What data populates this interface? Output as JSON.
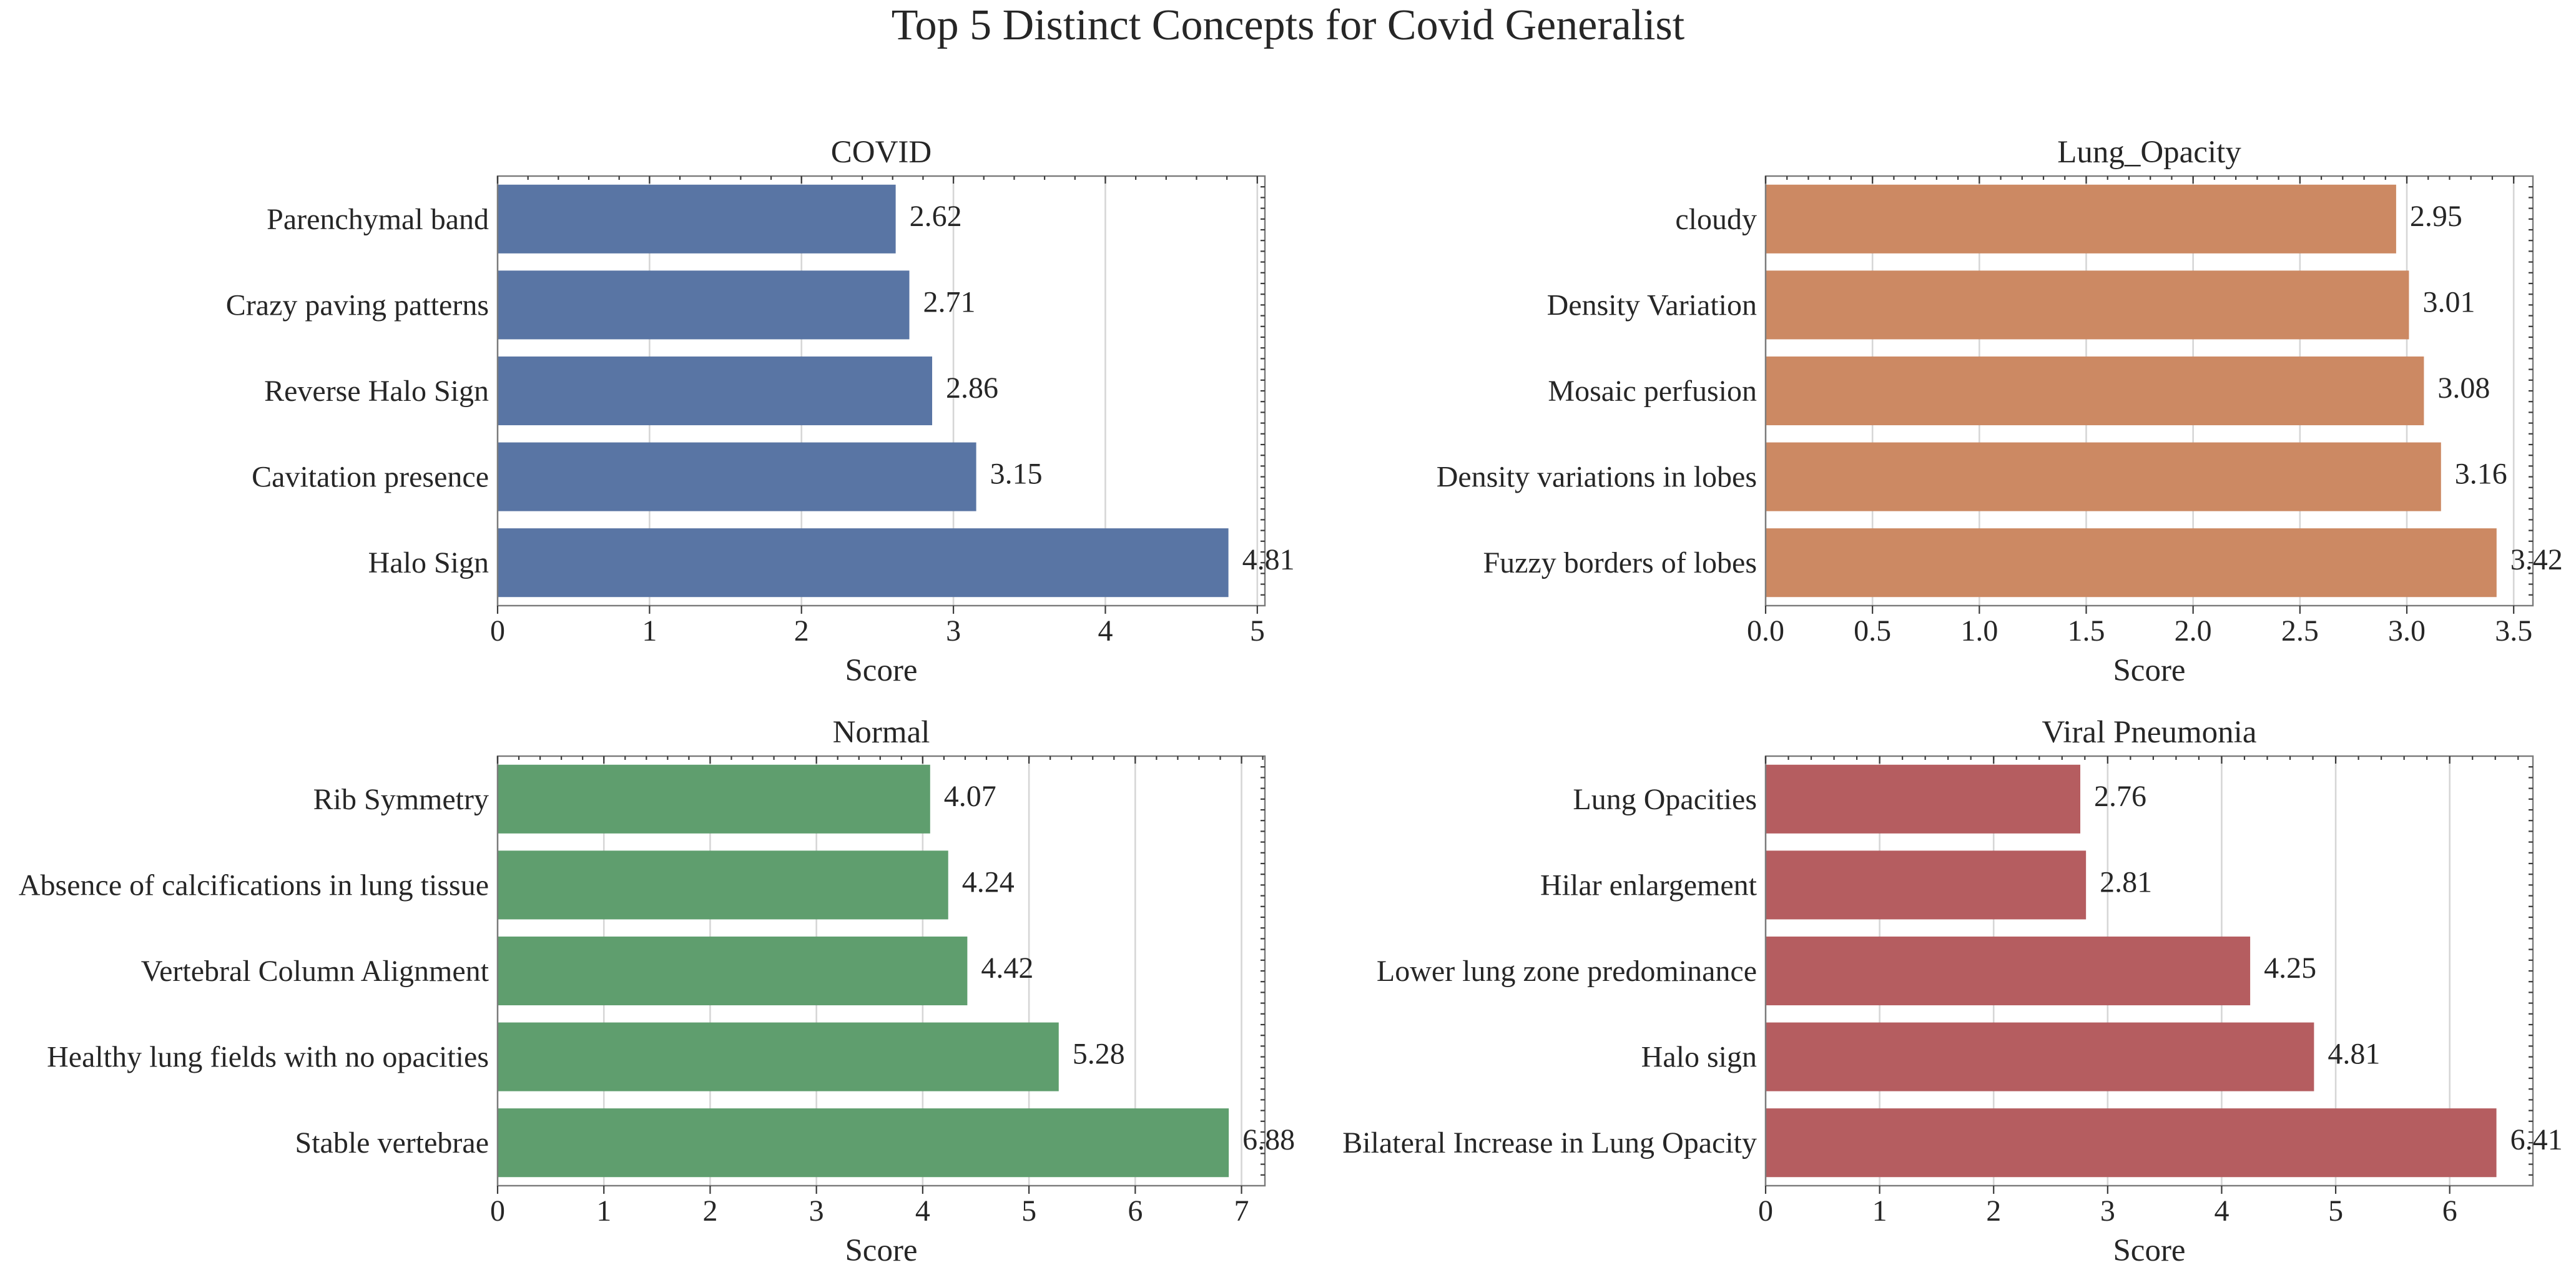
{
  "figure": {
    "title": "Top 5 Distinct Concepts for Covid Generalist"
  },
  "chart_data": [
    {
      "type": "bar",
      "orientation": "horizontal",
      "title": "COVID",
      "xlabel": "Score",
      "ylabel": "",
      "categories": [
        "Parenchymal band",
        "Crazy paving patterns",
        "Reverse Halo Sign",
        "Cavitation presence",
        "Halo Sign"
      ],
      "values": [
        2.62,
        2.71,
        2.86,
        3.15,
        4.81
      ],
      "xlim": [
        0,
        5.05
      ],
      "xticks": [
        0,
        1,
        2,
        3,
        4,
        5
      ],
      "xtick_labels": [
        "0",
        "1",
        "2",
        "3",
        "4",
        "5"
      ],
      "color": "#5975a4",
      "grid": true
    },
    {
      "type": "bar",
      "orientation": "horizontal",
      "title": "Lung_Opacity",
      "xlabel": "Score",
      "ylabel": "",
      "categories": [
        "cloudy",
        "Density Variation",
        "Mosaic perfusion",
        "Density variations in lobes",
        "Fuzzy borders of lobes"
      ],
      "values": [
        2.95,
        3.01,
        3.08,
        3.16,
        3.42
      ],
      "xlim": [
        0,
        3.59
      ],
      "xticks": [
        0,
        0.5,
        1,
        1.5,
        2,
        2.5,
        3,
        3.5
      ],
      "xtick_labels": [
        "0.0",
        "0.5",
        "1.0",
        "1.5",
        "2.0",
        "2.5",
        "3.0",
        "3.5"
      ],
      "color": "#cc8963",
      "grid": true
    },
    {
      "type": "bar",
      "orientation": "horizontal",
      "title": "Normal",
      "xlabel": "Score",
      "ylabel": "",
      "categories": [
        "Rib Symmetry",
        "Absence of calcifications in lung tissue",
        "Vertebral Column Alignment",
        "Healthy lung fields with no opacities",
        "Stable vertebrae"
      ],
      "values": [
        4.07,
        4.24,
        4.42,
        5.28,
        6.88
      ],
      "xlim": [
        0,
        7.22
      ],
      "xticks": [
        0,
        1,
        2,
        3,
        4,
        5,
        6,
        7
      ],
      "xtick_labels": [
        "0",
        "1",
        "2",
        "3",
        "4",
        "5",
        "6",
        "7"
      ],
      "color": "#5f9e6e",
      "grid": true
    },
    {
      "type": "bar",
      "orientation": "horizontal",
      "title": "Viral Pneumonia",
      "xlabel": "Score",
      "ylabel": "",
      "categories": [
        "Lung Opacities",
        "Hilar enlargement",
        "Lower lung zone predominance",
        "Halo sign",
        "Bilateral Increase in Lung Opacity"
      ],
      "values": [
        2.76,
        2.81,
        4.25,
        4.81,
        6.41
      ],
      "xlim": [
        0,
        6.73
      ],
      "xticks": [
        0,
        1,
        2,
        3,
        4,
        5,
        6
      ],
      "xtick_labels": [
        "0",
        "1",
        "2",
        "3",
        "4",
        "5",
        "6"
      ],
      "color": "#b55d60",
      "grid": true
    }
  ]
}
